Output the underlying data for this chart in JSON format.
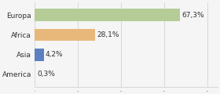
{
  "categories": [
    "Europa",
    "Africa",
    "Asia",
    "America"
  ],
  "values": [
    67.3,
    28.1,
    4.2,
    0.3
  ],
  "bar_colors": [
    "#b5cc96",
    "#e8b87a",
    "#5b7fc1",
    "#dddddd"
  ],
  "labels": [
    "67,3%",
    "28,1%",
    "4,2%",
    "0,3%"
  ],
  "xlim": [
    0,
    85
  ],
  "background_color": "#f5f5f5",
  "label_fontsize": 6.5,
  "tick_fontsize": 6.5,
  "bar_height": 0.62
}
